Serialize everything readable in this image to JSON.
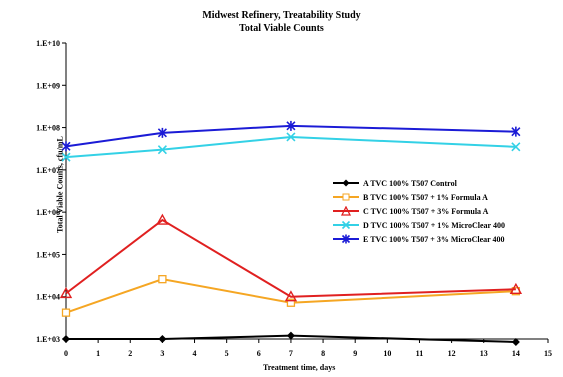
{
  "chart_data": {
    "type": "line",
    "title": "Midwest Refinery, Treatability Study",
    "subtitle": "Total Viable Counts",
    "xlabel": "Treatment time, days",
    "ylabel": "Total Viable Counts, cfu/mL",
    "x_ticks": [
      "0",
      "1",
      "2",
      "3",
      "4",
      "5",
      "6",
      "7",
      "8",
      "9",
      "10",
      "11",
      "12",
      "13",
      "14",
      "15"
    ],
    "y_ticks": [
      "1.E+03",
      "1.E+04",
      "1.E+05",
      "1.E+06",
      "1.E+07",
      "1.E+08",
      "1.E+09",
      "1.E+10"
    ],
    "xlim": [
      0,
      15
    ],
    "ylim": [
      1000,
      10000000000
    ],
    "y_scale": "log",
    "legend_position": "right-middle",
    "series": [
      {
        "name": "A TVC 100% T507 Control",
        "color": "#000000",
        "marker": "diamond",
        "x": [
          0,
          3,
          7,
          14
        ],
        "y": [
          1000,
          1000,
          1200,
          850
        ]
      },
      {
        "name": "B TVC 100% T507 + 1% Formula A",
        "color": "#f5a623",
        "marker": "square",
        "x": [
          0,
          3,
          7,
          14
        ],
        "y": [
          4200,
          26000,
          7200,
          13500
        ]
      },
      {
        "name": "C TVC 100% T507 + 3% Formula A",
        "color": "#e02020",
        "marker": "triangle",
        "x": [
          0,
          3,
          7,
          14
        ],
        "y": [
          12000,
          650000,
          10000,
          15000
        ]
      },
      {
        "name": "D TVC 100% T507 + 1% MicroClear 400",
        "color": "#33d1e6",
        "marker": "x",
        "x": [
          0,
          3,
          7,
          14
        ],
        "y": [
          20000000,
          30000000,
          60000000,
          35000000
        ]
      },
      {
        "name": "E TVC 100% T507 + 3% MicroClear 400",
        "color": "#1b1bd6",
        "marker": "star",
        "x": [
          0,
          3,
          7,
          14
        ],
        "y": [
          36000000,
          75000000,
          110000000,
          80000000
        ]
      }
    ]
  }
}
